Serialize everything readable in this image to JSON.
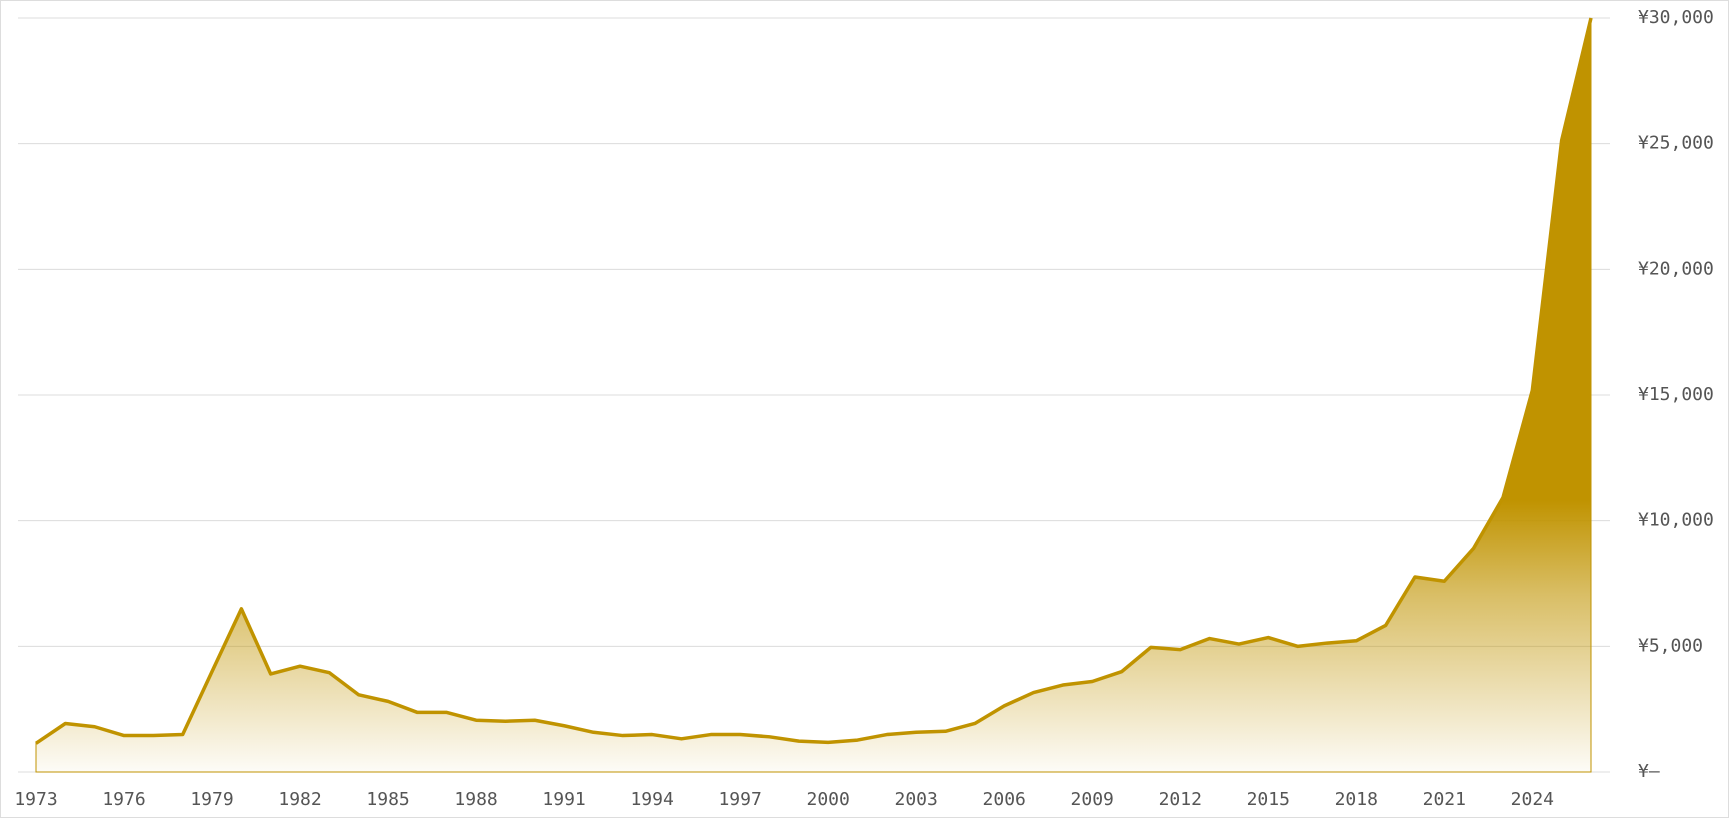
{
  "chart_data": {
    "type": "area",
    "categories": [
      "1973",
      null,
      null,
      "1976",
      null,
      null,
      "1979",
      null,
      null,
      "1982",
      null,
      null,
      "1985",
      null,
      null,
      "1988",
      null,
      null,
      "1991",
      null,
      null,
      "1994",
      null,
      null,
      "1997",
      null,
      null,
      "2000",
      null,
      null,
      "2003",
      null,
      null,
      "2006",
      null,
      null,
      "2009",
      null,
      null,
      "2012",
      null,
      null,
      "2015",
      null,
      null,
      "2018",
      null,
      null,
      "2021",
      null,
      null,
      "2024",
      null,
      null
    ],
    "values": [
      1140,
      1930,
      1800,
      1450,
      1450,
      1490,
      4000,
      6490,
      3900,
      4210,
      3950,
      3070,
      2810,
      2370,
      2370,
      2060,
      2020,
      2060,
      1840,
      1580,
      1450,
      1490,
      1320,
      1490,
      1490,
      1400,
      1230,
      1180,
      1270,
      1490,
      1580,
      1620,
      1930,
      2630,
      3160,
      3460,
      3600,
      3990,
      4960,
      4870,
      5310,
      5090,
      5350,
      5000,
      5130,
      5220,
      5830,
      7760,
      7590,
      8900,
      10920,
      15180,
      25130,
      30000
    ],
    "color": "#c09300",
    "ylim": [
      0,
      30000
    ],
    "yticks": [
      {
        "value": 0,
        "label": "¥–"
      },
      {
        "value": 5000,
        "label": "¥5,000"
      },
      {
        "value": 10000,
        "label": "¥10,000"
      },
      {
        "value": 15000,
        "label": "¥15,000"
      },
      {
        "value": 20000,
        "label": "¥20,000"
      },
      {
        "value": 25000,
        "label": "¥25,000"
      },
      {
        "value": 30000,
        "label": "¥30,000"
      }
    ],
    "grid": true,
    "y_axis_side": "right"
  }
}
